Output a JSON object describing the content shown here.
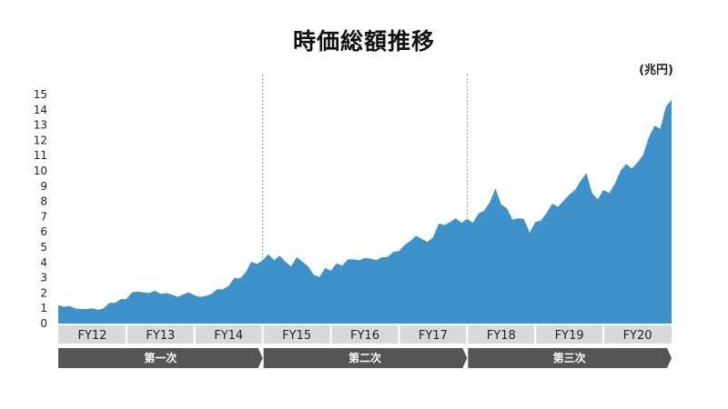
{
  "title": "時価総額推移",
  "unit": "(兆円)",
  "chart_data": {
    "type": "area",
    "title": "時価総額推移",
    "ylabel": "(兆円)",
    "ylim": [
      0,
      15
    ],
    "yticks": [
      0,
      1,
      2,
      3,
      4,
      5,
      6,
      7,
      8,
      9,
      10,
      11,
      12,
      13,
      14,
      15
    ],
    "grid": false,
    "color": "#3d93c9",
    "fiscal_years": [
      "FY12",
      "FY13",
      "FY14",
      "FY15",
      "FY16",
      "FY17",
      "FY18",
      "FY19",
      "FY20"
    ],
    "phases": [
      "第一次",
      "第二次",
      "第三次"
    ],
    "values": [
      1.2,
      1.1,
      1.15,
      1.0,
      0.95,
      0.95,
      1.0,
      0.9,
      1.0,
      1.35,
      1.35,
      1.6,
      1.6,
      2.05,
      2.1,
      2.05,
      2.0,
      2.15,
      1.95,
      2.0,
      1.9,
      1.75,
      1.9,
      2.05,
      1.85,
      1.75,
      1.8,
      1.95,
      2.25,
      2.25,
      2.45,
      3.0,
      2.95,
      3.35,
      4.05,
      3.9,
      4.15,
      4.55,
      4.15,
      4.45,
      4.05,
      3.75,
      4.35,
      4.05,
      3.75,
      3.2,
      3.05,
      3.65,
      3.45,
      3.95,
      3.8,
      4.2,
      4.2,
      4.15,
      4.3,
      4.25,
      4.15,
      4.35,
      4.35,
      4.7,
      4.75,
      5.15,
      5.4,
      5.75,
      5.55,
      5.35,
      5.65,
      6.55,
      6.45,
      6.65,
      6.9,
      6.6,
      6.85,
      6.6,
      7.2,
      7.4,
      7.95,
      8.85,
      7.8,
      7.55,
      6.8,
      6.9,
      6.85,
      5.95,
      6.65,
      6.75,
      7.25,
      7.85,
      7.65,
      8.05,
      8.45,
      8.75,
      9.35,
      9.85,
      8.55,
      8.15,
      8.75,
      8.55,
      9.15,
      10.0,
      10.45,
      10.15,
      10.55,
      11.05,
      12.2,
      12.95,
      12.75,
      14.2,
      14.65
    ]
  }
}
